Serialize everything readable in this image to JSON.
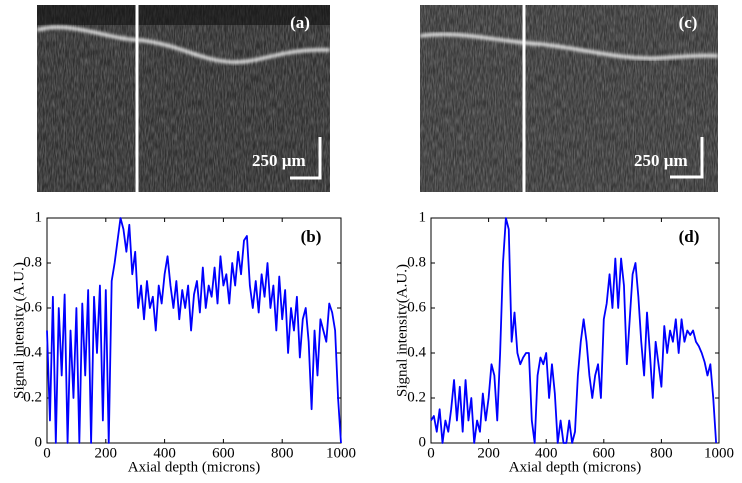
{
  "images": [
    {
      "label": "(a)",
      "scale_bar": "250 µm"
    },
    {
      "label": "(c)",
      "scale_bar": "250 µm"
    }
  ],
  "chart_data": [
    {
      "type": "line",
      "annotation": "(b)",
      "y_label": "Signal intensity (A.U.)",
      "x_label": "Axial depth (microns)",
      "color": "#0000ff",
      "xlim": [
        0,
        1000
      ],
      "xticks": [
        0,
        200,
        400,
        600,
        800,
        1000
      ],
      "ylim": [
        0,
        1
      ],
      "yticks": [
        0,
        0.2,
        0.4,
        0.6,
        0.8,
        1
      ],
      "x": [
        0,
        10,
        20,
        30,
        40,
        50,
        60,
        70,
        80,
        90,
        100,
        110,
        120,
        130,
        140,
        150,
        160,
        170,
        180,
        190,
        200,
        210,
        220,
        230,
        240,
        250,
        260,
        270,
        280,
        290,
        300,
        310,
        320,
        330,
        340,
        350,
        360,
        370,
        380,
        390,
        400,
        410,
        420,
        430,
        440,
        450,
        460,
        470,
        480,
        490,
        500,
        510,
        520,
        530,
        540,
        550,
        560,
        570,
        580,
        590,
        600,
        610,
        620,
        630,
        640,
        650,
        660,
        670,
        680,
        690,
        700,
        710,
        720,
        730,
        740,
        750,
        760,
        770,
        780,
        790,
        800,
        810,
        820,
        830,
        840,
        850,
        860,
        870,
        880,
        890,
        900,
        910,
        920,
        930,
        940,
        950,
        960,
        970,
        980,
        990,
        1000
      ],
      "values": [
        0.5,
        0.1,
        0.65,
        0,
        0.6,
        0.3,
        0.66,
        0,
        0.5,
        0.2,
        0.6,
        0,
        0.62,
        0.3,
        0.68,
        0,
        0.65,
        0.4,
        0.7,
        0.1,
        0.68,
        0,
        0.72,
        0.8,
        0.9,
        1,
        0.95,
        0.85,
        0.97,
        0.75,
        0.85,
        0.6,
        0.7,
        0.55,
        0.72,
        0.6,
        0.65,
        0.5,
        0.7,
        0.62,
        0.75,
        0.83,
        0.7,
        0.6,
        0.72,
        0.55,
        0.68,
        0.6,
        0.7,
        0.5,
        0.66,
        0.72,
        0.58,
        0.78,
        0.6,
        0.7,
        0.65,
        0.78,
        0.62,
        0.83,
        0.7,
        0.75,
        0.62,
        0.8,
        0.7,
        0.85,
        0.75,
        0.9,
        0.92,
        0.7,
        0.6,
        0.72,
        0.58,
        0.75,
        0.65,
        0.8,
        0.6,
        0.7,
        0.5,
        0.74,
        0.55,
        0.68,
        0.4,
        0.6,
        0.5,
        0.65,
        0.38,
        0.55,
        0.6,
        0.45,
        0.15,
        0.5,
        0.3,
        0.55,
        0.5,
        0.45,
        0.62,
        0.58,
        0.5,
        0.2,
        0
      ]
    },
    {
      "type": "line",
      "annotation": "(d)",
      "y_label": "Signal intensity(A.U.)",
      "x_label": "Axial depth (microns)",
      "color": "#0000ff",
      "xlim": [
        0,
        1000
      ],
      "xticks": [
        0,
        200,
        400,
        600,
        800,
        1000
      ],
      "ylim": [
        0,
        1
      ],
      "yticks": [
        0,
        0.2,
        0.4,
        0.6,
        0.8,
        1
      ],
      "x": [
        0,
        10,
        20,
        30,
        40,
        50,
        60,
        70,
        80,
        90,
        100,
        110,
        120,
        130,
        140,
        150,
        160,
        170,
        180,
        190,
        200,
        210,
        220,
        230,
        240,
        250,
        260,
        270,
        280,
        290,
        300,
        310,
        320,
        330,
        340,
        350,
        360,
        370,
        380,
        390,
        400,
        410,
        420,
        430,
        440,
        450,
        460,
        470,
        480,
        490,
        500,
        510,
        520,
        530,
        540,
        550,
        560,
        570,
        580,
        590,
        600,
        610,
        620,
        630,
        640,
        650,
        660,
        670,
        680,
        690,
        700,
        710,
        720,
        730,
        740,
        750,
        760,
        770,
        780,
        790,
        800,
        810,
        820,
        830,
        840,
        850,
        860,
        870,
        880,
        890,
        900,
        910,
        920,
        930,
        940,
        950,
        960,
        970,
        980,
        990
      ],
      "values": [
        0.1,
        0.12,
        0.05,
        0.15,
        0,
        0.1,
        0.05,
        0.15,
        0.28,
        0.1,
        0.25,
        0.05,
        0.28,
        0.1,
        0.2,
        0,
        0.1,
        0.05,
        0.22,
        0.1,
        0.2,
        0.35,
        0.3,
        0.1,
        0.4,
        0.8,
        1,
        0.95,
        0.45,
        0.58,
        0.4,
        0.35,
        0.38,
        0.4,
        0.4,
        0.1,
        0,
        0.3,
        0.38,
        0.35,
        0.4,
        0.2,
        0.35,
        0.22,
        0,
        0.1,
        0,
        0,
        0.1,
        0,
        0.05,
        0.3,
        0.45,
        0.55,
        0.45,
        0.3,
        0.2,
        0.3,
        0.35,
        0.2,
        0.55,
        0.62,
        0.75,
        0.6,
        0.82,
        0.6,
        0.82,
        0.7,
        0.35,
        0.55,
        0.75,
        0.8,
        0.65,
        0.45,
        0.3,
        0.58,
        0.4,
        0.2,
        0.45,
        0.35,
        0.25,
        0.52,
        0.4,
        0.5,
        0.45,
        0.55,
        0.4,
        0.55,
        0.45,
        0.5,
        0.48,
        0.5,
        0.45,
        0.43,
        0.4,
        0.36,
        0.3,
        0.35,
        0.2,
        0
      ]
    }
  ]
}
